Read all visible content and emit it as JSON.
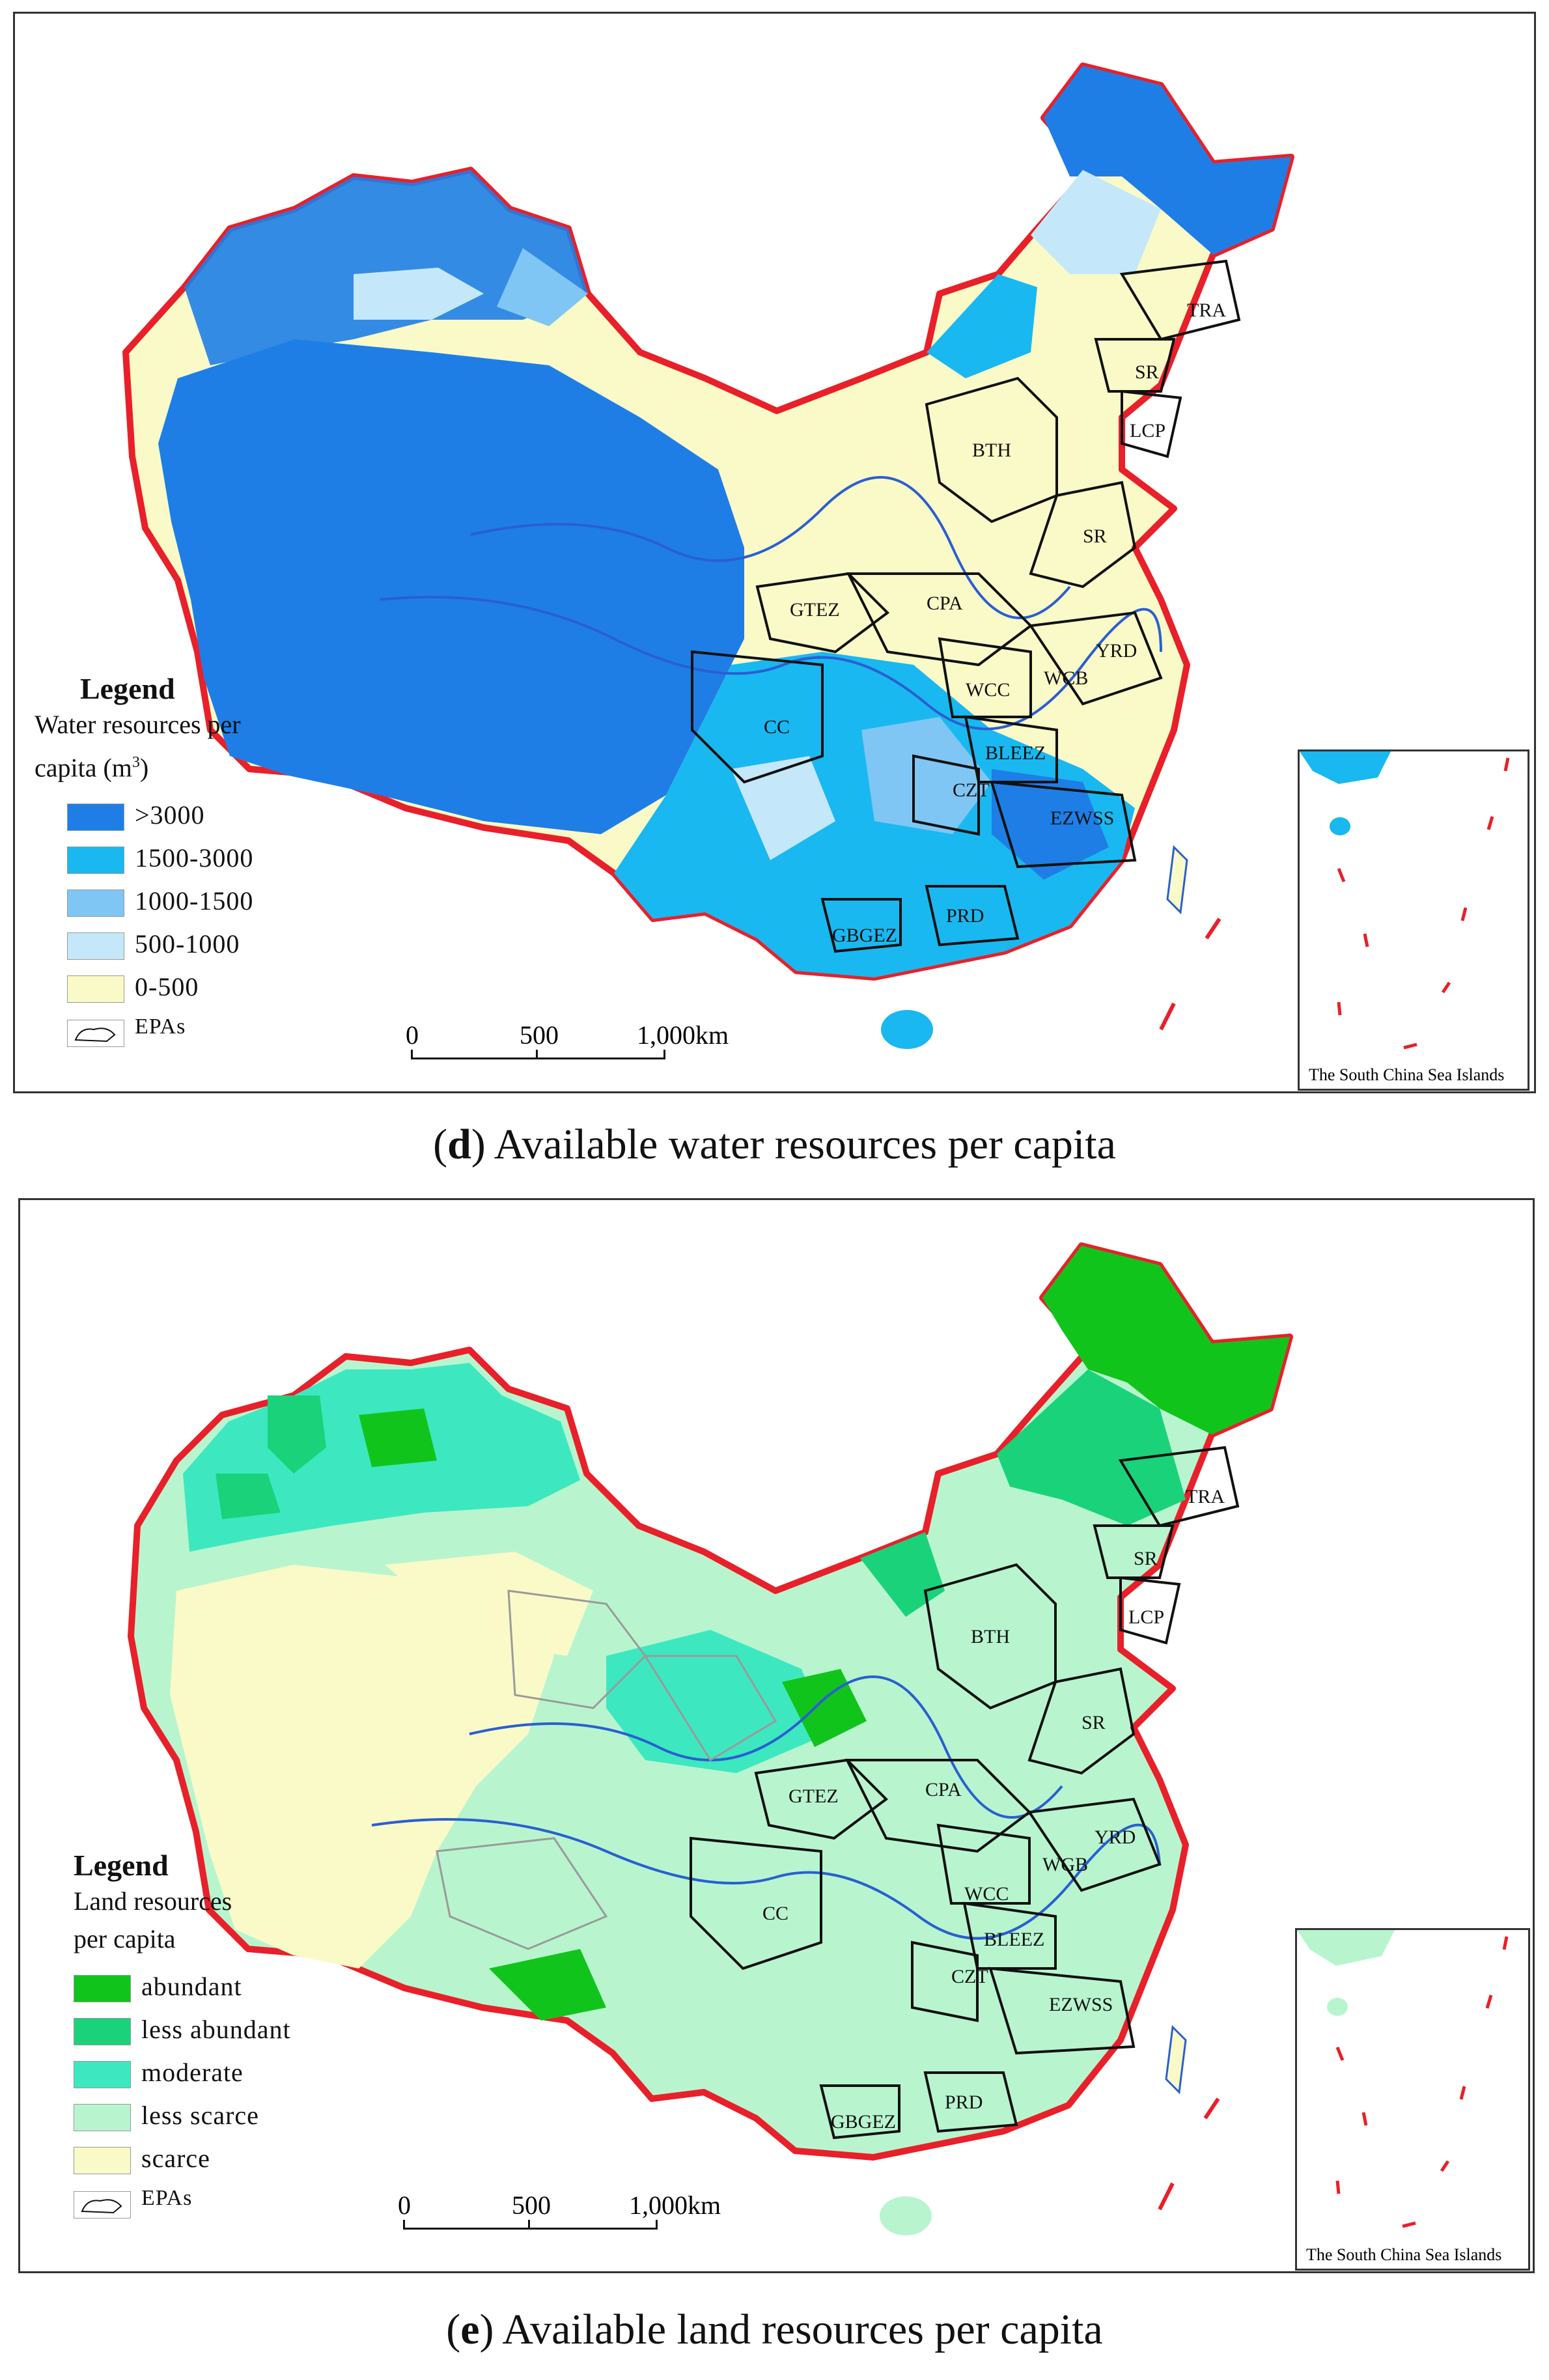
{
  "panels": [
    {
      "caption_letter": "d",
      "caption_text": ") Available water resources per capita",
      "legend_title": "Legend",
      "legend_subtitle_1": "Water resources per",
      "legend_subtitle_2": "capita (m",
      "legend_subtitle_sup": "3",
      "legend_subtitle_end": ")",
      "legend_items": [
        {
          "label": ">3000",
          "color": "#1e7ee6"
        },
        {
          "label": "1500-3000",
          "color": "#19b8f0"
        },
        {
          "label": "1000-1500",
          "color": "#7fc6f5"
        },
        {
          "label": "500-1000",
          "color": "#c4e8fa"
        },
        {
          "label": "0-500",
          "color": "#fafac8"
        }
      ],
      "epa_label": "EPAs",
      "scale": {
        "zero": "0",
        "mid": "500",
        "end": "1,000km"
      },
      "inset_label": "The South China Sea Islands",
      "zones": [
        "TRA",
        "SR",
        "LCP",
        "BTH",
        "SR",
        "GTEZ",
        "CPA",
        "YRD",
        "WCC",
        "WCB",
        "CC",
        "BLEEZ",
        "CZT",
        "EZWSS",
        "PRD",
        "GBGEZ"
      ]
    },
    {
      "caption_letter": "e",
      "caption_text": ") Available land resources per capita",
      "legend_title": "Legend",
      "legend_subtitle_1": "Land resources",
      "legend_subtitle_2": "per capita",
      "legend_items": [
        {
          "label": "abundant",
          "color": "#11c41c"
        },
        {
          "label": "less abundant",
          "color": "#1ad27a"
        },
        {
          "label": "moderate",
          "color": "#3de8c0"
        },
        {
          "label": "less scarce",
          "color": "#b8f5cf"
        },
        {
          "label": "scarce",
          "color": "#fafac8"
        }
      ],
      "epa_label": "EPAs",
      "scale": {
        "zero": "0",
        "mid": "500",
        "end": "1,000km"
      },
      "inset_label": "The South China Sea Islands",
      "zones": [
        "TRA",
        "SR",
        "LCP",
        "BTH",
        "SR",
        "GTEZ",
        "CPA",
        "YRD",
        "WGB",
        "WCC",
        "CC",
        "BLEEZ",
        "CZT",
        "EZWSS",
        "PRD",
        "GBGEZ"
      ]
    }
  ],
  "colors": {
    "border_red": "#e8202a",
    "epa_outline": "#111111",
    "river": "#2a5fd0"
  }
}
